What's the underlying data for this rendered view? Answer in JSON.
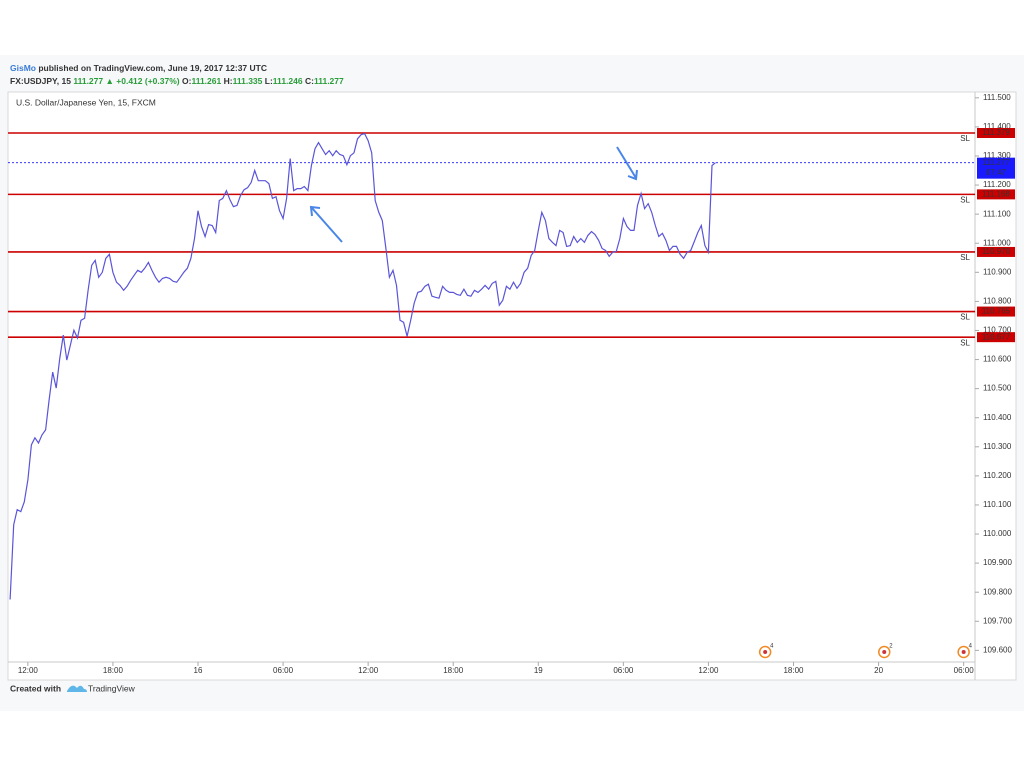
{
  "header": {
    "author": "GisMo",
    "published": "published on TradingView.com, June 19, 2017 12:37 UTC",
    "symbol": "FX:USDJPY, 15",
    "last": "111.277",
    "change": "▲ +0.412 (+0.37%)",
    "ohlc": [
      {
        "label": "O:",
        "value": "111.261"
      },
      {
        "label": "H:",
        "value": "111.335"
      },
      {
        "label": "L:",
        "value": "111.246"
      },
      {
        "label": "C:",
        "value": "111.277"
      }
    ]
  },
  "footer": {
    "created": "Created with",
    "brand": "TradingView"
  },
  "chart_data": {
    "type": "line",
    "legend": "U.S. Dollar/Japanese Yen, 15, FXCM",
    "x": [
      -1.25,
      -1,
      -0.75,
      -0.5,
      -0.25,
      0,
      0.25,
      0.5,
      0.75,
      1,
      1.25,
      1.5,
      1.75,
      2,
      2.25,
      2.5,
      2.75,
      3,
      3.25,
      3.5,
      3.75,
      4,
      4.25,
      4.5,
      4.75,
      5,
      5.25,
      5.5,
      5.75,
      6,
      6.25,
      6.5,
      6.75,
      7,
      7.25,
      7.5,
      7.75,
      8,
      8.25,
      8.5,
      8.75,
      9,
      9.25,
      9.5,
      9.75,
      10,
      10.25,
      10.5,
      10.75,
      11,
      11.25,
      11.5,
      11.75,
      12,
      12.25,
      12.5,
      12.75,
      13,
      13.25,
      13.5,
      13.75,
      14,
      14.25,
      14.5,
      14.75,
      15,
      15.25,
      15.5,
      15.75,
      16,
      16.25,
      16.5,
      16.75,
      17,
      17.25,
      17.5,
      17.75,
      18,
      18.25,
      18.5,
      18.75,
      19,
      19.25,
      19.5,
      19.75,
      20,
      20.25,
      20.5,
      20.75,
      21,
      21.25,
      21.5,
      21.75,
      22,
      22.25,
      22.5,
      22.75,
      23,
      23.25,
      23.5,
      23.75,
      24,
      24.25,
      24.5,
      24.75,
      25,
      25.25,
      25.5,
      25.75,
      26,
      26.25,
      26.5,
      26.75,
      27,
      27.25,
      27.5,
      27.75,
      28,
      28.25,
      28.5,
      28.75,
      29,
      29.25,
      29.5,
      29.75,
      30,
      30.25,
      30.5,
      30.75,
      31,
      31.25,
      31.5,
      31.75,
      32,
      32.25,
      32.5,
      32.75,
      33,
      33.25,
      33.5,
      33.75,
      34,
      34.25,
      34.5,
      34.75,
      35,
      35.25,
      35.5,
      35.75,
      36,
      36.25,
      36.5,
      36.75,
      37,
      37.25,
      37.5,
      37.75,
      38,
      38.25,
      38.5,
      38.75,
      39,
      39.25,
      39.5,
      39.75,
      40,
      40.25,
      40.5,
      40.75,
      41,
      41.25,
      41.5,
      41.75,
      42,
      42.25,
      42.5,
      42.75,
      43,
      43.25,
      43.5,
      43.75,
      44,
      44.25,
      44.5,
      44.75,
      45,
      45.25,
      45.5,
      45.75,
      46,
      46.25,
      46.5,
      46.75,
      47,
      47.25,
      47.5,
      47.75,
      48,
      48.25,
      48.5
    ],
    "series": [
      {
        "name": "U.S. Dollar/Japanese Yen, 15, FXCM",
        "color": "#5a55d8",
        "values": [
          109.775,
          110.032,
          110.084,
          110.077,
          110.111,
          110.187,
          110.307,
          110.331,
          110.313,
          110.341,
          110.358,
          110.461,
          110.557,
          110.502,
          110.605,
          110.684,
          110.598,
          110.65,
          110.701,
          110.674,
          110.735,
          110.742,
          110.838,
          110.924,
          110.941,
          110.883,
          110.9,
          110.948,
          110.962,
          110.9,
          110.866,
          110.855,
          110.838,
          110.852,
          110.872,
          110.89,
          110.907,
          110.9,
          110.914,
          110.934,
          110.907,
          110.883,
          110.866,
          110.879,
          110.883,
          110.879,
          110.869,
          110.866,
          110.883,
          110.9,
          110.914,
          110.948,
          111.016,
          111.112,
          111.058,
          111.023,
          111.064,
          111.061,
          111.037,
          111.147,
          111.154,
          111.181,
          111.15,
          111.126,
          111.13,
          111.164,
          111.184,
          111.191,
          111.209,
          111.25,
          111.215,
          111.215,
          111.215,
          111.205,
          111.154,
          111.16,
          111.112,
          111.085,
          111.154,
          111.291,
          111.181,
          111.188,
          111.188,
          111.195,
          111.181,
          111.267,
          111.325,
          111.346,
          111.325,
          111.305,
          111.318,
          111.301,
          111.318,
          111.305,
          111.301,
          111.27,
          111.301,
          111.311,
          111.359,
          111.373,
          111.377,
          111.353,
          111.311,
          111.147,
          111.106,
          111.078,
          110.982,
          110.883,
          110.907,
          110.855,
          110.735,
          110.728,
          110.68,
          110.735,
          110.794,
          110.831,
          110.835,
          110.852,
          110.859,
          110.818,
          110.814,
          110.811,
          110.852,
          110.838,
          110.831,
          110.831,
          110.824,
          110.821,
          110.842,
          110.821,
          110.818,
          110.838,
          110.831,
          110.842,
          110.855,
          110.842,
          110.862,
          110.869,
          110.787,
          110.804,
          110.852,
          110.842,
          110.866,
          110.845,
          110.862,
          110.9,
          110.914,
          110.958,
          110.975,
          111.044,
          111.106,
          111.078,
          111.016,
          111.003,
          110.992,
          111.044,
          111.037,
          110.989,
          110.992,
          111.023,
          111.003,
          111.016,
          111.003,
          111.027,
          111.04,
          111.03,
          111.01,
          110.982,
          110.975,
          110.955,
          110.969,
          110.972,
          111.016,
          111.085,
          111.058,
          111.044,
          111.044,
          111.13,
          111.171,
          111.119,
          111.136,
          111.106,
          111.061,
          111.023,
          111.034,
          111.01,
          110.975,
          110.989,
          110.989,
          110.962,
          110.948,
          110.969,
          110.975,
          111.006,
          111.037,
          111.061,
          110.992,
          110.969,
          111.267,
          111.277
        ]
      }
    ],
    "xlim": [
      -1.4,
      66.8
    ],
    "xticks": [
      {
        "value": 0,
        "label": "12:00"
      },
      {
        "value": 6,
        "label": "18:00"
      },
      {
        "value": 12,
        "label": "16"
      },
      {
        "value": 18,
        "label": "06:00"
      },
      {
        "value": 24,
        "label": "12:00"
      },
      {
        "value": 30,
        "label": "18:00"
      },
      {
        "value": 36,
        "label": "19"
      },
      {
        "value": 42,
        "label": "06:00"
      },
      {
        "value": 48,
        "label": "12:00"
      },
      {
        "value": 54,
        "label": "18:00"
      },
      {
        "value": 60,
        "label": "20"
      },
      {
        "value": 66,
        "label": "06:00"
      }
    ],
    "ylim": [
      109.56,
      111.52
    ],
    "yticks": [
      {
        "value": 111.5,
        "label": "111.500"
      },
      {
        "value": 111.4,
        "label": "111.400"
      },
      {
        "value": 111.3,
        "label": "111.300"
      },
      {
        "value": 111.2,
        "label": "111.200"
      },
      {
        "value": 111.1,
        "label": "111.100"
      },
      {
        "value": 111.0,
        "label": "111.000"
      },
      {
        "value": 110.9,
        "label": "110.900"
      },
      {
        "value": 110.8,
        "label": "110.800"
      },
      {
        "value": 110.7,
        "label": "110.700"
      },
      {
        "value": 110.6,
        "label": "110.600"
      },
      {
        "value": 110.5,
        "label": "110.500"
      },
      {
        "value": 110.4,
        "label": "110.400"
      },
      {
        "value": 110.3,
        "label": "110.300"
      },
      {
        "value": 110.2,
        "label": "110.200"
      },
      {
        "value": 110.1,
        "label": "110.100"
      },
      {
        "value": 110.0,
        "label": "110.000"
      },
      {
        "value": 109.9,
        "label": "109.900"
      },
      {
        "value": 109.8,
        "label": "109.800"
      },
      {
        "value": 109.7,
        "label": "109.700"
      },
      {
        "value": 109.6,
        "label": "109.600"
      }
    ],
    "levels": [
      {
        "value": 111.379,
        "label": "111.379",
        "tag": "SL",
        "color": "#cc0000"
      },
      {
        "value": 111.168,
        "label": "111.168",
        "tag": "SL",
        "color": "#cc0000"
      },
      {
        "value": 110.97,
        "label": "110.970",
        "tag": "SL",
        "color": "#cc0000"
      },
      {
        "value": 110.765,
        "label": "110.765",
        "tag": "SL",
        "color": "#cc0000"
      },
      {
        "value": 110.677,
        "label": "110.677",
        "tag": "SL",
        "color": "#cc0000"
      }
    ],
    "last_price": {
      "value": 111.277,
      "label": "111.277",
      "countdown": "07:47",
      "color": "#1a1aff"
    },
    "events": [
      {
        "x": 52.0,
        "label": "4"
      },
      {
        "x": 60.4,
        "label": "2"
      },
      {
        "x": 66.0,
        "label": "4"
      }
    ]
  }
}
